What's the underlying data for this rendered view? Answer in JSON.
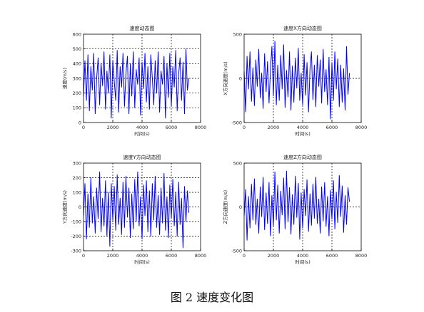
{
  "caption": "图 2  速度变化图",
  "chart_data": [
    {
      "type": "line",
      "title": "速度动态图",
      "xlabel": "时间(s)",
      "ylabel": "速度(m/s)",
      "xlim": [
        0,
        8000
      ],
      "ylim": [
        0,
        600
      ],
      "xticks": [
        0,
        2000,
        4000,
        6000,
        8000
      ],
      "yticks": [
        0,
        100,
        200,
        300,
        400,
        500,
        600
      ],
      "grid": true,
      "line_color": "#0000ff",
      "series": [
        {
          "x": [
            0,
            100,
            200,
            300,
            400,
            500,
            600,
            700,
            800,
            900,
            1000,
            1100,
            1200,
            1300,
            1400,
            1500,
            1600,
            1700,
            1800,
            1900,
            2000,
            2100,
            2200,
            2300,
            2400,
            2500,
            2600,
            2700,
            2800,
            2900,
            3000,
            3100,
            3200,
            3300,
            3400,
            3500,
            3600,
            3700,
            3800,
            3900,
            4000,
            4100,
            4200,
            4300,
            4400,
            4500,
            4600,
            4700,
            4800,
            4900,
            5000,
            5100,
            5200,
            5300,
            5400,
            5500,
            5600,
            5700,
            5800,
            5900,
            6000,
            6100,
            6200,
            6300,
            6400,
            6500,
            6600,
            6700,
            6800,
            6900,
            7000,
            7100,
            7200
          ],
          "values": [
            180,
            420,
            150,
            460,
            80,
            380,
            220,
            470,
            60,
            300,
            440,
            120,
            400,
            250,
            480,
            90,
            350,
            200,
            460,
            30,
            420,
            280,
            150,
            490,
            70,
            380,
            240,
            470,
            110,
            330,
            450,
            60,
            400,
            180,
            480,
            100,
            360,
            260,
            440,
            50,
            410,
            230,
            470,
            140,
            380,
            90,
            460,
            300,
            120,
            420,
            200,
            480,
            70,
            350,
            260,
            450,
            30,
            400,
            170,
            470,
            110,
            380,
            240,
            490,
            80,
            330,
            440,
            150,
            410,
            60,
            500,
            220,
            300
          ]
        }
      ]
    },
    {
      "type": "line",
      "title": "速度X方向动态图",
      "xlabel": "时间(s)",
      "ylabel": "X方向速度(m/s)",
      "xlim": [
        0,
        8000
      ],
      "ylim": [
        -500,
        500
      ],
      "xticks": [
        0,
        2000,
        4000,
        6000,
        8000
      ],
      "yticks": [
        -500,
        0,
        500
      ],
      "grid": true,
      "line_color": "#0000ff",
      "series": [
        {
          "x": [
            0,
            100,
            200,
            300,
            400,
            500,
            600,
            700,
            800,
            900,
            1000,
            1100,
            1200,
            1300,
            1400,
            1500,
            1600,
            1700,
            1800,
            1900,
            2000,
            2100,
            2200,
            2300,
            2400,
            2500,
            2600,
            2700,
            2800,
            2900,
            3000,
            3100,
            3200,
            3300,
            3400,
            3500,
            3600,
            3700,
            3800,
            3900,
            4000,
            4100,
            4200,
            4300,
            4400,
            4500,
            4600,
            4700,
            4800,
            4900,
            5000,
            5100,
            5200,
            5300,
            5400,
            5500,
            5600,
            5700,
            5800,
            5900,
            6000,
            6100,
            6200,
            6300,
            6400,
            6500,
            6600,
            6700,
            6800,
            6900,
            7000,
            7100,
            7200
          ],
          "values": [
            80,
            -380,
            250,
            -120,
            300,
            -260,
            120,
            -310,
            210,
            -90,
            330,
            -220,
            60,
            -340,
            280,
            -150,
            190,
            -280,
            100,
            360,
            -200,
            420,
            -300,
            150,
            -250,
            260,
            -120,
            380,
            -330,
            90,
            -210,
            300,
            -360,
            140,
            -270,
            230,
            -110,
            340,
            -250,
            60,
            -300,
            270,
            -190,
            180,
            -380,
            110,
            300,
            -240,
            150,
            -320,
            260,
            -90,
            210,
            -280,
            330,
            -150,
            100,
            -300,
            240,
            -460,
            180,
            -250,
            300,
            -120,
            220,
            -320,
            150,
            -270,
            110,
            -360,
            360,
            -180,
            60
          ]
        }
      ]
    },
    {
      "type": "line",
      "title": "速度Y方向动态图",
      "xlabel": "时间(s)",
      "ylabel": "Y方向速度(m/s)",
      "xlim": [
        0,
        8000
      ],
      "ylim": [
        -300,
        300
      ],
      "xticks": [
        0,
        2000,
        4000,
        6000,
        8000
      ],
      "yticks": [
        -300,
        -200,
        -100,
        0,
        100,
        200,
        300
      ],
      "grid": true,
      "line_color": "#0000ff",
      "series": [
        {
          "x": [
            0,
            100,
            200,
            300,
            400,
            500,
            600,
            700,
            800,
            900,
            1000,
            1100,
            1200,
            1300,
            1400,
            1500,
            1600,
            1700,
            1800,
            1900,
            2000,
            2100,
            2200,
            2300,
            2400,
            2500,
            2600,
            2700,
            2800,
            2900,
            3000,
            3100,
            3200,
            3300,
            3400,
            3500,
            3600,
            3700,
            3800,
            3900,
            4000,
            4100,
            4200,
            4300,
            4400,
            4500,
            4600,
            4700,
            4800,
            4900,
            5000,
            5100,
            5200,
            5300,
            5400,
            5500,
            5600,
            5700,
            5800,
            5900,
            6000,
            6100,
            6200,
            6300,
            6400,
            6500,
            6600,
            6700,
            6800,
            6900,
            7000,
            7100,
            7200
          ],
          "values": [
            -60,
            160,
            -220,
            90,
            -140,
            200,
            -110,
            70,
            -180,
            130,
            -80,
            240,
            -170,
            60,
            -130,
            180,
            -200,
            100,
            -270,
            160,
            -90,
            140,
            -160,
            220,
            -120,
            60,
            -190,
            170,
            -140,
            210,
            -70,
            130,
            -210,
            90,
            -150,
            190,
            -100,
            240,
            -130,
            70,
            -220,
            150,
            -60,
            180,
            -170,
            110,
            -200,
            160,
            -90,
            210,
            -140,
            80,
            -190,
            130,
            -110,
            230,
            -160,
            70,
            -210,
            150,
            -80,
            190,
            -130,
            100,
            -200,
            170,
            -120,
            60,
            -280,
            140,
            -100,
            110,
            -40
          ]
        }
      ]
    },
    {
      "type": "line",
      "title": "速度Z方向动态图",
      "xlabel": "时间(s)",
      "ylabel": "Z方向速度(m/s)",
      "xlim": [
        0,
        8000
      ],
      "ylim": [
        -500,
        500
      ],
      "xticks": [
        0,
        2000,
        4000,
        6000,
        8000
      ],
      "yticks": [
        -500,
        0,
        500
      ],
      "grid": true,
      "line_color": "#0000ff",
      "series": [
        {
          "x": [
            0,
            100,
            200,
            300,
            400,
            500,
            600,
            700,
            800,
            900,
            1000,
            1100,
            1200,
            1300,
            1400,
            1500,
            1600,
            1700,
            1800,
            1900,
            2000,
            2100,
            2200,
            2300,
            2400,
            2500,
            2600,
            2700,
            2800,
            2900,
            3000,
            3100,
            3200,
            3300,
            3400,
            3500,
            3600,
            3700,
            3800,
            3900,
            4000,
            4100,
            4200,
            4300,
            4400,
            4500,
            4600,
            4700,
            4800,
            4900,
            5000,
            5100,
            5200,
            5300,
            5400,
            5500,
            5600,
            5700,
            5800,
            5900,
            6000,
            6100,
            6200,
            6300,
            6400,
            6500,
            6600,
            6700,
            6800,
            6900,
            7000,
            7100,
            7200
          ],
          "values": [
            -100,
            200,
            -380,
            120,
            -240,
            260,
            -150,
            320,
            -200,
            90,
            -300,
            230,
            -110,
            340,
            -260,
            160,
            -190,
            280,
            -330,
            130,
            -220,
            400,
            -150,
            250,
            -300,
            180,
            -90,
            330,
            -250,
            410,
            -170,
            220,
            -310,
            140,
            -200,
            350,
            -120,
            270,
            -370,
            160,
            -240,
            200,
            -100,
            310,
            -280,
            150,
            -210,
            260,
            -130,
            340,
            -190,
            90,
            -300,
            230,
            -160,
            280,
            -220,
            120,
            -330,
            190,
            -140,
            300,
            -250,
            170,
            -180,
            360,
            -110,
            240,
            -290,
            130,
            -200,
            220,
            60
          ]
        }
      ]
    }
  ]
}
